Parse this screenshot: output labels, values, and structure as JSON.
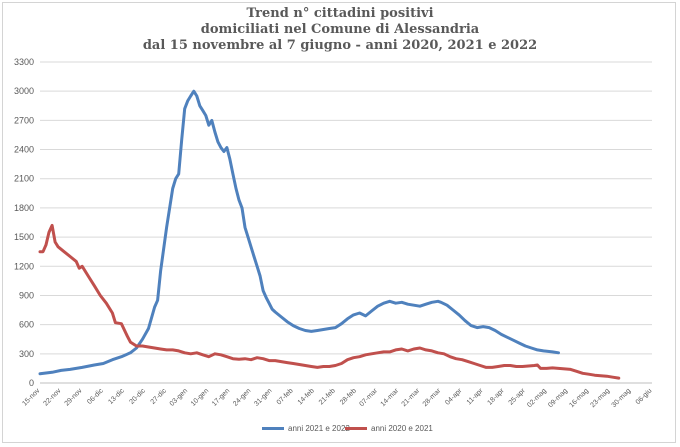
{
  "chart_data": {
    "type": "line",
    "title_lines": [
      "Trend n° cittadini positivi",
      "domiciliati nel Comune di Alessandria",
      "dal 15 novembre al 7 giugno - anni 2020, 2021 e 2022"
    ],
    "x_tick_labels": [
      "15-nov",
      "22-nov",
      "29-nov",
      "06-dic",
      "13-dic",
      "20-dic",
      "27-dic",
      "03-gen",
      "10-gen",
      "17-gen",
      "24-gen",
      "31-gen",
      "07-feb",
      "14-feb",
      "21-feb",
      "28-feb",
      "07-mar",
      "14-mar",
      "21-mar",
      "28-mar",
      "04-apr",
      "11-apr",
      "18-apr",
      "25-apr",
      "02-mag",
      "09-mag",
      "16-mag",
      "23-mag",
      "30-mag",
      "06-giu"
    ],
    "y_ticks": [
      0,
      300,
      600,
      900,
      1200,
      1500,
      1800,
      2100,
      2400,
      2700,
      3000,
      3300
    ],
    "ylim": [
      0,
      3300
    ],
    "grid": true,
    "legend_position": "bottom",
    "series": [
      {
        "name": "anni 2021 e 2022",
        "color": "#4f81bd",
        "points": [
          [
            0,
            95
          ],
          [
            4,
            110
          ],
          [
            7,
            130
          ],
          [
            10,
            140
          ],
          [
            14,
            160
          ],
          [
            18,
            185
          ],
          [
            21,
            200
          ],
          [
            24,
            240
          ],
          [
            27,
            270
          ],
          [
            30,
            310
          ],
          [
            32,
            360
          ],
          [
            34,
            450
          ],
          [
            36,
            560
          ],
          [
            38,
            780
          ],
          [
            39,
            850
          ],
          [
            40,
            1150
          ],
          [
            42,
            1600
          ],
          [
            44,
            2000
          ],
          [
            45,
            2100
          ],
          [
            46,
            2150
          ],
          [
            47,
            2500
          ],
          [
            48,
            2820
          ],
          [
            49,
            2900
          ],
          [
            50,
            2950
          ],
          [
            51,
            3000
          ],
          [
            52,
            2950
          ],
          [
            53,
            2850
          ],
          [
            54,
            2800
          ],
          [
            55,
            2750
          ],
          [
            56,
            2650
          ],
          [
            57,
            2700
          ],
          [
            58,
            2580
          ],
          [
            59,
            2480
          ],
          [
            60,
            2420
          ],
          [
            61,
            2380
          ],
          [
            62,
            2420
          ],
          [
            63,
            2300
          ],
          [
            64,
            2150
          ],
          [
            65,
            2000
          ],
          [
            66,
            1880
          ],
          [
            67,
            1800
          ],
          [
            68,
            1600
          ],
          [
            69,
            1500
          ],
          [
            70,
            1400
          ],
          [
            71,
            1300
          ],
          [
            72,
            1200
          ],
          [
            73,
            1100
          ],
          [
            74,
            950
          ],
          [
            75,
            880
          ],
          [
            76,
            820
          ],
          [
            77,
            760
          ],
          [
            78,
            730
          ],
          [
            80,
            680
          ],
          [
            82,
            630
          ],
          [
            84,
            590
          ],
          [
            86,
            560
          ],
          [
            88,
            540
          ],
          [
            90,
            530
          ],
          [
            92,
            540
          ],
          [
            94,
            550
          ],
          [
            96,
            560
          ],
          [
            98,
            570
          ],
          [
            100,
            610
          ],
          [
            102,
            660
          ],
          [
            104,
            700
          ],
          [
            106,
            720
          ],
          [
            108,
            690
          ],
          [
            110,
            740
          ],
          [
            112,
            790
          ],
          [
            114,
            820
          ],
          [
            116,
            840
          ],
          [
            118,
            820
          ],
          [
            120,
            830
          ],
          [
            122,
            810
          ],
          [
            124,
            800
          ],
          [
            126,
            790
          ],
          [
            128,
            810
          ],
          [
            130,
            830
          ],
          [
            132,
            840
          ],
          [
            133,
            830
          ],
          [
            135,
            800
          ],
          [
            137,
            750
          ],
          [
            139,
            700
          ],
          [
            141,
            640
          ],
          [
            143,
            590
          ],
          [
            145,
            570
          ],
          [
            147,
            580
          ],
          [
            149,
            570
          ],
          [
            151,
            540
          ],
          [
            153,
            500
          ],
          [
            155,
            470
          ],
          [
            157,
            440
          ],
          [
            159,
            410
          ],
          [
            161,
            380
          ],
          [
            163,
            360
          ],
          [
            165,
            340
          ],
          [
            167,
            330
          ],
          [
            170,
            320
          ],
          [
            172,
            310
          ]
        ]
      },
      {
        "name": "anni 2020 e 2021",
        "color": "#c0504d",
        "points": [
          [
            0,
            1350
          ],
          [
            1,
            1350
          ],
          [
            2,
            1420
          ],
          [
            3,
            1550
          ],
          [
            4,
            1620
          ],
          [
            5,
            1450
          ],
          [
            6,
            1400
          ],
          [
            8,
            1350
          ],
          [
            10,
            1300
          ],
          [
            12,
            1250
          ],
          [
            13,
            1180
          ],
          [
            14,
            1200
          ],
          [
            16,
            1100
          ],
          [
            18,
            1000
          ],
          [
            20,
            900
          ],
          [
            22,
            820
          ],
          [
            24,
            720
          ],
          [
            25,
            620
          ],
          [
            27,
            610
          ],
          [
            29,
            480
          ],
          [
            30,
            420
          ],
          [
            32,
            380
          ],
          [
            34,
            380
          ],
          [
            36,
            370
          ],
          [
            38,
            360
          ],
          [
            40,
            350
          ],
          [
            42,
            340
          ],
          [
            44,
            340
          ],
          [
            46,
            330
          ],
          [
            48,
            310
          ],
          [
            50,
            300
          ],
          [
            52,
            310
          ],
          [
            54,
            290
          ],
          [
            56,
            270
          ],
          [
            58,
            300
          ],
          [
            60,
            290
          ],
          [
            62,
            270
          ],
          [
            64,
            250
          ],
          [
            66,
            245
          ],
          [
            68,
            250
          ],
          [
            70,
            240
          ],
          [
            72,
            260
          ],
          [
            74,
            250
          ],
          [
            76,
            230
          ],
          [
            78,
            230
          ],
          [
            80,
            220
          ],
          [
            82,
            210
          ],
          [
            84,
            200
          ],
          [
            86,
            190
          ],
          [
            88,
            180
          ],
          [
            90,
            170
          ],
          [
            92,
            160
          ],
          [
            94,
            170
          ],
          [
            96,
            170
          ],
          [
            98,
            180
          ],
          [
            100,
            200
          ],
          [
            102,
            240
          ],
          [
            104,
            260
          ],
          [
            106,
            270
          ],
          [
            108,
            290
          ],
          [
            110,
            300
          ],
          [
            112,
            310
          ],
          [
            114,
            320
          ],
          [
            116,
            320
          ],
          [
            118,
            340
          ],
          [
            120,
            350
          ],
          [
            122,
            330
          ],
          [
            124,
            350
          ],
          [
            126,
            360
          ],
          [
            128,
            340
          ],
          [
            130,
            330
          ],
          [
            132,
            310
          ],
          [
            134,
            300
          ],
          [
            136,
            270
          ],
          [
            138,
            250
          ],
          [
            140,
            240
          ],
          [
            142,
            220
          ],
          [
            144,
            200
          ],
          [
            146,
            180
          ],
          [
            148,
            160
          ],
          [
            150,
            160
          ],
          [
            152,
            170
          ],
          [
            154,
            180
          ],
          [
            156,
            180
          ],
          [
            158,
            170
          ],
          [
            160,
            170
          ],
          [
            162,
            175
          ],
          [
            164,
            180
          ],
          [
            165,
            185
          ],
          [
            166,
            150
          ],
          [
            168,
            150
          ],
          [
            170,
            155
          ],
          [
            172,
            150
          ],
          [
            174,
            145
          ],
          [
            176,
            140
          ],
          [
            178,
            120
          ],
          [
            180,
            100
          ],
          [
            182,
            90
          ],
          [
            184,
            80
          ],
          [
            186,
            75
          ],
          [
            188,
            70
          ],
          [
            190,
            60
          ],
          [
            192,
            50
          ]
        ]
      }
    ]
  }
}
